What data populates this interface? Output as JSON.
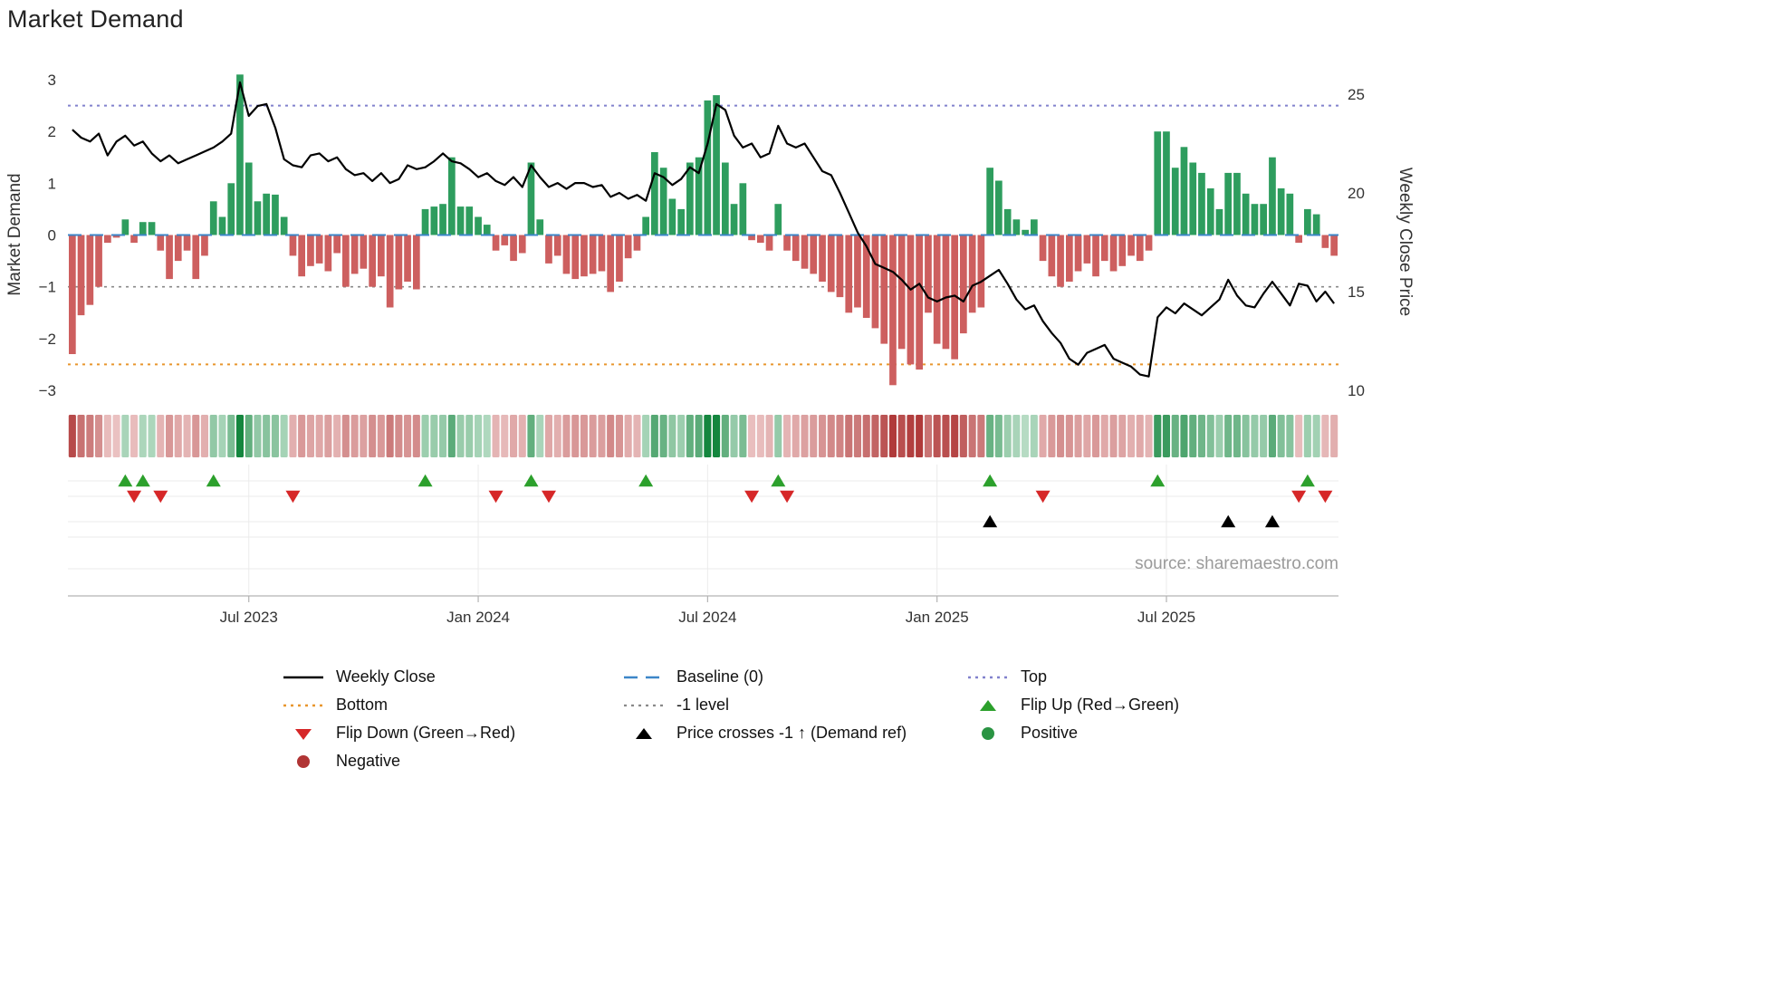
{
  "title": "Market Demand",
  "source": "source: sharemaestro.com",
  "colors": {
    "bar_positive": "#2e9d5e",
    "bar_negative": "#cd5f5f",
    "price_line": "#000000",
    "baseline": "#3c86c8",
    "top_line": "#8282cd",
    "bottom_line": "#e8962e",
    "minus_one_line": "#8a8a8a",
    "flip_up": "#2ca02c",
    "flip_down": "#d62728",
    "price_cross": "#000000",
    "positive_dot": "#2a9443",
    "negative_dot": "#b03434",
    "tick_text": "#333333",
    "grid_faint": "#ebebeb",
    "axis_spine": "#b3b3b3"
  },
  "chart_data": {
    "type": "bar",
    "subtype": "weekly demand bars + weekly close price line + signal heatmap + flip markers",
    "title": "Market Demand",
    "x_unit": "week index (weekly bars, ~Feb 2023 to ~Nov 2025)",
    "x_ticks": [
      {
        "week": 20,
        "label": "Jul 2023"
      },
      {
        "week": 46,
        "label": "Jan 2024"
      },
      {
        "week": 72,
        "label": "Jul 2024"
      },
      {
        "week": 98,
        "label": "Jan 2025"
      },
      {
        "week": 124,
        "label": "Jul 2025"
      }
    ],
    "left_axis": {
      "label": "Market Demand",
      "range": [
        -3,
        3
      ],
      "ticks": [
        3,
        2,
        1,
        0,
        -1,
        -2,
        -3
      ]
    },
    "right_axis": {
      "label": "Weekly Close Price",
      "range": [
        10,
        25
      ],
      "ticks": [
        25,
        20,
        15,
        10
      ]
    },
    "ref_lines": {
      "top": 2.5,
      "baseline": 0,
      "minus_one": -1,
      "bottom": -2.5
    },
    "heatmap_from": "Market Demand bar values (red negative / green positive intensity strip)",
    "series": [
      {
        "name": "Market Demand",
        "type": "bar",
        "axis": "left",
        "values": [
          -2.3,
          -1.55,
          -1.35,
          -1.0,
          -0.15,
          -0.05,
          0.3,
          -0.15,
          0.25,
          0.25,
          -0.3,
          -0.85,
          -0.5,
          -0.3,
          -0.85,
          -0.4,
          0.65,
          0.35,
          1.0,
          3.1,
          1.4,
          0.65,
          0.8,
          0.78,
          0.35,
          -0.4,
          -0.8,
          -0.6,
          -0.55,
          -0.7,
          -0.35,
          -1.0,
          -0.75,
          -0.65,
          -1.0,
          -0.8,
          -1.4,
          -1.05,
          -0.9,
          -1.05,
          0.5,
          0.55,
          0.6,
          1.5,
          0.55,
          0.55,
          0.35,
          0.2,
          -0.3,
          -0.2,
          -0.5,
          -0.35,
          1.4,
          0.3,
          -0.55,
          -0.4,
          -0.75,
          -0.85,
          -0.8,
          -0.75,
          -0.7,
          -1.1,
          -0.9,
          -0.45,
          -0.3,
          0.35,
          1.6,
          1.3,
          0.7,
          0.5,
          1.4,
          1.5,
          2.6,
          2.7,
          1.4,
          0.6,
          1.0,
          -0.1,
          -0.15,
          -0.3,
          0.6,
          -0.3,
          -0.5,
          -0.65,
          -0.75,
          -0.9,
          -1.1,
          -1.2,
          -1.5,
          -1.4,
          -1.6,
          -1.8,
          -2.1,
          -2.9,
          -2.2,
          -2.5,
          -2.6,
          -1.5,
          -2.1,
          -2.2,
          -2.4,
          -1.9,
          -1.5,
          -1.4,
          1.3,
          1.05,
          0.5,
          0.3,
          0.1,
          0.3,
          -0.5,
          -0.8,
          -1.0,
          -0.9,
          -0.7,
          -0.55,
          -0.8,
          -0.5,
          -0.7,
          -0.6,
          -0.4,
          -0.5,
          -0.3,
          2.0,
          2.0,
          1.3,
          1.7,
          1.4,
          1.2,
          0.9,
          0.5,
          1.2,
          1.2,
          0.8,
          0.6,
          0.6,
          1.5,
          0.9,
          0.8,
          -0.15,
          0.5,
          0.4,
          -0.25,
          -0.4
        ]
      },
      {
        "name": "Weekly Close",
        "type": "line",
        "axis": "right",
        "values": [
          23.2,
          22.8,
          22.6,
          23.0,
          21.9,
          22.6,
          22.9,
          22.4,
          22.6,
          22.0,
          21.6,
          21.9,
          21.5,
          21.7,
          21.9,
          22.1,
          22.3,
          22.6,
          23.0,
          25.6,
          23.9,
          24.4,
          24.5,
          23.3,
          21.7,
          21.4,
          21.3,
          21.9,
          22.0,
          21.6,
          21.8,
          21.2,
          20.9,
          21.0,
          20.6,
          21.0,
          20.5,
          20.7,
          21.4,
          21.2,
          21.3,
          21.6,
          22.0,
          21.6,
          21.5,
          21.2,
          20.8,
          21.0,
          20.6,
          20.4,
          20.8,
          20.3,
          21.4,
          20.8,
          20.3,
          20.5,
          20.2,
          20.5,
          20.5,
          20.3,
          20.4,
          19.8,
          20.0,
          19.7,
          19.9,
          19.6,
          21.0,
          20.8,
          20.4,
          20.7,
          21.3,
          21.0,
          22.5,
          24.5,
          24.2,
          22.9,
          22.3,
          22.5,
          21.8,
          22.0,
          23.4,
          22.5,
          22.3,
          22.5,
          21.8,
          21.1,
          20.9,
          20.0,
          19.0,
          18.0,
          17.3,
          16.4,
          16.2,
          16.0,
          15.6,
          15.1,
          15.4,
          14.7,
          14.5,
          14.7,
          14.8,
          14.5,
          15.3,
          15.5,
          15.8,
          16.1,
          15.4,
          14.6,
          14.1,
          14.3,
          13.5,
          12.9,
          12.4,
          11.6,
          11.3,
          11.9,
          12.1,
          12.3,
          11.6,
          11.4,
          11.2,
          10.8,
          10.7,
          13.7,
          14.2,
          13.9,
          14.4,
          14.1,
          13.8,
          14.2,
          14.6,
          15.6,
          14.8,
          14.3,
          14.2,
          14.9,
          15.5,
          14.9,
          14.3,
          15.4,
          15.3,
          14.5,
          15.0,
          14.4
        ]
      }
    ],
    "markers": {
      "flip_up_weeks": [
        6,
        8,
        16,
        40,
        52,
        65,
        80,
        104,
        123,
        140
      ],
      "flip_down_weeks": [
        7,
        10,
        25,
        48,
        54,
        77,
        81,
        110,
        139,
        142
      ],
      "price_cross_weeks": [
        104,
        131,
        136
      ]
    }
  },
  "legend": {
    "columns": [
      {
        "items": [
          {
            "label": "Weekly Close"
          },
          {
            "label": "Bottom"
          },
          {
            "label": "Flip Down (Green→Red)"
          },
          {
            "label": "Negative"
          }
        ]
      },
      {
        "items": [
          {
            "label": "Baseline (0)"
          },
          {
            "label": "-1 level"
          },
          {
            "label": "Price crosses -1 ↑ (Demand ref)"
          }
        ]
      },
      {
        "items": [
          {
            "label": "Top"
          },
          {
            "label": "Flip Up (Red→Green)"
          },
          {
            "label": "Positive"
          }
        ]
      }
    ]
  }
}
